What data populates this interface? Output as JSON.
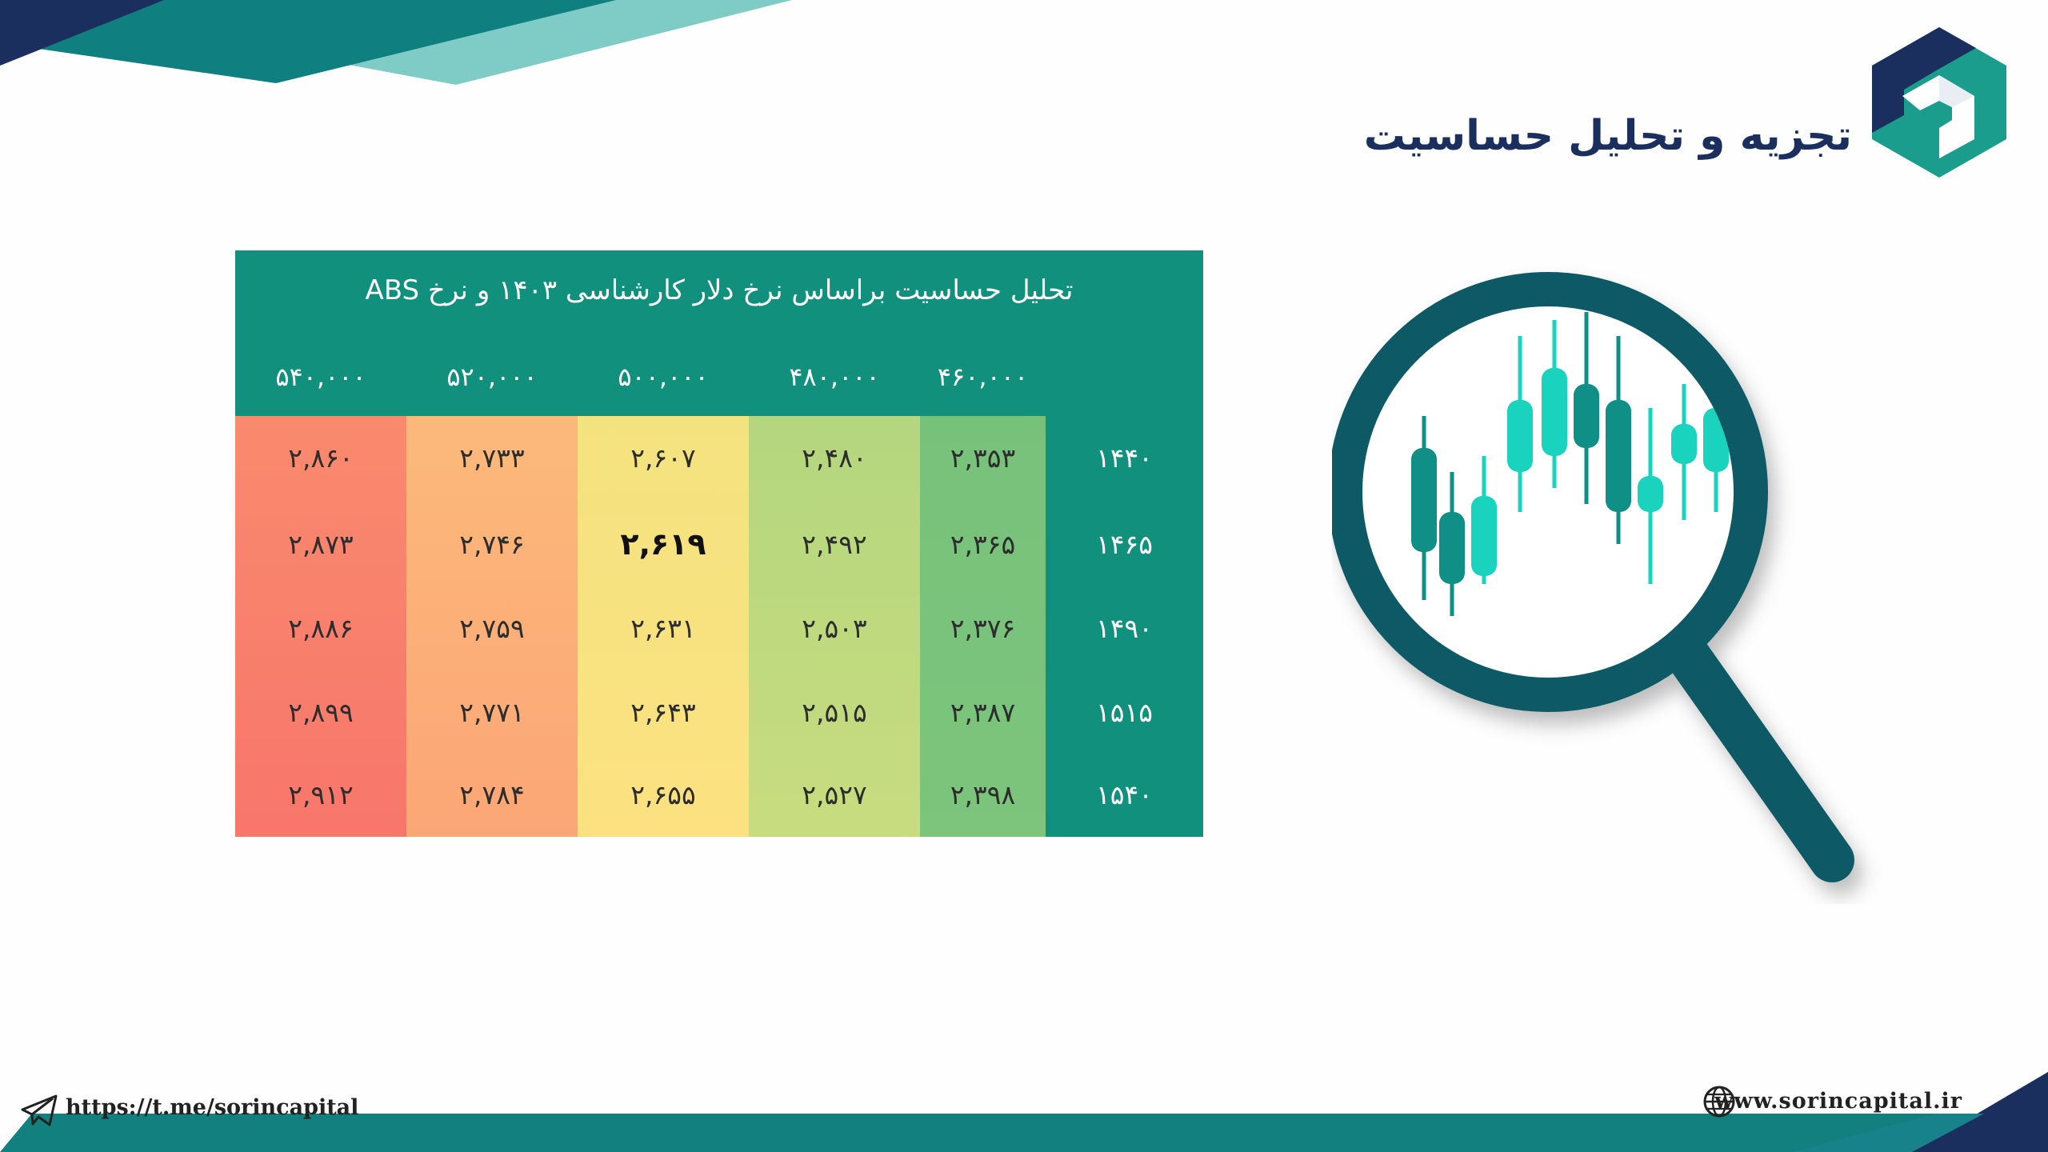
{
  "header": {
    "title": "تجزیه و تحلیل حساسیت"
  },
  "table": {
    "title": "تحلیل حساسیت براساس نرخ دلار کارشناسی ۱۴۰۳ و نرخ ABS",
    "columns": [
      "۵۴۰,۰۰۰",
      "۵۲۰,۰۰۰",
      "۵۰۰,۰۰۰",
      "۴۸۰,۰۰۰",
      "۴۶۰,۰۰۰"
    ],
    "rows": [
      {
        "label": "۱۴۴۰",
        "values": [
          "۲,۸۶۰",
          "۲,۷۳۳",
          "۲,۶۰۷",
          "۲,۴۸۰",
          "۲,۳۵۳"
        ]
      },
      {
        "label": "۱۴۶۵",
        "values": [
          "۲,۸۷۳",
          "۲,۷۴۶",
          "۲,۶۱۹",
          "۲,۴۹۲",
          "۲,۳۶۵"
        ]
      },
      {
        "label": "۱۴۹۰",
        "values": [
          "۲,۸۸۶",
          "۲,۷۵۹",
          "۲,۶۳۱",
          "۲,۵۰۳",
          "۲,۳۷۶"
        ]
      },
      {
        "label": "۱۵۱۵",
        "values": [
          "۲,۸۹۹",
          "۲,۷۷۱",
          "۲,۶۴۳",
          "۲,۵۱۵",
          "۲,۳۸۷"
        ]
      },
      {
        "label": "۱۵۴۰",
        "values": [
          "۲,۹۱۲",
          "۲,۷۸۴",
          "۲,۶۵۵",
          "۲,۵۲۷",
          "۲,۳۹۸"
        ]
      }
    ],
    "highlighted_cell": {
      "row": 1,
      "col": 2
    },
    "heat_colors": [
      [
        "#f98a6d",
        "#f8766c"
      ],
      [
        "#fcb97a",
        "#fba676"
      ],
      [
        "#f3e37f",
        "#fde180"
      ],
      [
        "#b4d67e",
        "#c8dc7f"
      ],
      [
        "#77c27b",
        "#7dc47c"
      ]
    ],
    "header_color": "#11907d"
  },
  "footer": {
    "telegram": "https://t.me/sorincapital",
    "website": "www.sorincapital.ir"
  },
  "icons": [
    "brand-logo-icon",
    "magnifier-chart-icon",
    "telegram-icon",
    "globe-icon"
  ],
  "colors": {
    "navy": "#1b2f5e",
    "teal": "#11907d",
    "dark_teal": "#0e5a66",
    "light_teal": "#7fcbc6",
    "candle": "#19d3bf"
  }
}
